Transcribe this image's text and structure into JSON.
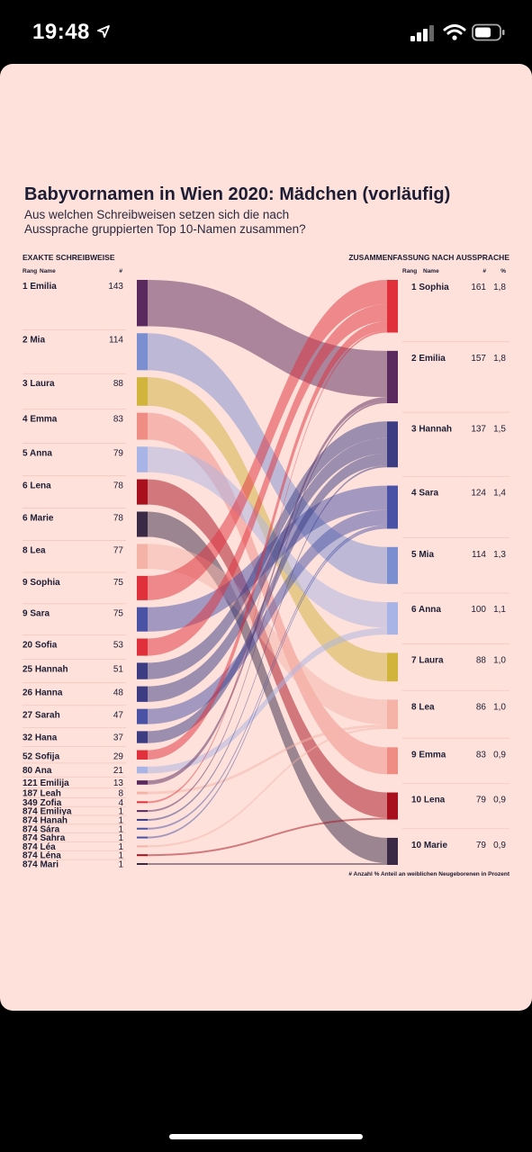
{
  "status_bar": {
    "time": "19:48"
  },
  "chart_data": {
    "type": "sankey",
    "title": "Babyvornamen in Wien 2020: Mädchen (vorläufig)",
    "subtitle_line1": "Aus welchen Schreibweisen setzen sich die nach",
    "subtitle_line2": "Aussprache gruppierten Top 10-Namen zusammen?",
    "left_header": "EXAKTE SCHREIBWEISE",
    "left_col_rank": "Rang",
    "left_col_name": "Name",
    "left_col_count": "#",
    "right_header": "ZUSAMMENFASSUNG NACH AUSSPRACHE",
    "right_col_rank": "Rang",
    "right_col_name": "Name",
    "right_col_count": "#",
    "right_col_pct": "%",
    "footnote": "# Anzahl  % Anteil an weiblichen Neugeborenen in Prozent",
    "right_groups": [
      {
        "rank": "1",
        "name": "Sophia",
        "count": "161",
        "pct": "1,8",
        "color": "#e0303c"
      },
      {
        "rank": "2",
        "name": "Emilia",
        "count": "157",
        "pct": "1,8",
        "color": "#5a2a5e"
      },
      {
        "rank": "3",
        "name": "Hannah",
        "count": "137",
        "pct": "1,5",
        "color": "#3c3c82"
      },
      {
        "rank": "4",
        "name": "Sara",
        "count": "124",
        "pct": "1,4",
        "color": "#4a52a6"
      },
      {
        "rank": "5",
        "name": "Mia",
        "count": "114",
        "pct": "1,3",
        "color": "#7b8fd0"
      },
      {
        "rank": "6",
        "name": "Anna",
        "count": "100",
        "pct": "1,1",
        "color": "#a9b4e6"
      },
      {
        "rank": "7",
        "name": "Laura",
        "count": "88",
        "pct": "1,0",
        "color": "#d1b43c"
      },
      {
        "rank": "8",
        "name": "Lea",
        "count": "86",
        "pct": "1,0",
        "color": "#f5b3a8"
      },
      {
        "rank": "9",
        "name": "Emma",
        "count": "83",
        "pct": "0,9",
        "color": "#ef8c84"
      },
      {
        "rank": "10",
        "name": "Lena",
        "count": "79",
        "pct": "0,9",
        "color": "#a8101e"
      },
      {
        "rank": "10",
        "name": "Marie",
        "count": "79",
        "pct": "0,9",
        "color": "#3a2a45"
      }
    ],
    "spellings": [
      {
        "rank": "1",
        "name": "Emilia",
        "count": "143",
        "group": "Emilia"
      },
      {
        "rank": "2",
        "name": "Mia",
        "count": "114",
        "group": "Mia"
      },
      {
        "rank": "3",
        "name": "Laura",
        "count": "88",
        "group": "Laura"
      },
      {
        "rank": "4",
        "name": "Emma",
        "count": "83",
        "group": "Emma"
      },
      {
        "rank": "5",
        "name": "Anna",
        "count": "79",
        "group": "Anna"
      },
      {
        "rank": "6",
        "name": "Lena",
        "count": "78",
        "group": "Lena"
      },
      {
        "rank": "6",
        "name": "Marie",
        "count": "78",
        "group": "Marie"
      },
      {
        "rank": "8",
        "name": "Lea",
        "count": "77",
        "group": "Lea"
      },
      {
        "rank": "9",
        "name": "Sophia",
        "count": "75",
        "group": "Sophia"
      },
      {
        "rank": "9",
        "name": "Sara",
        "count": "75",
        "group": "Sara"
      },
      {
        "rank": "20",
        "name": "Sofia",
        "count": "53",
        "group": "Sophia"
      },
      {
        "rank": "25",
        "name": "Hannah",
        "count": "51",
        "group": "Hannah"
      },
      {
        "rank": "26",
        "name": "Hanna",
        "count": "48",
        "group": "Hannah"
      },
      {
        "rank": "27",
        "name": "Sarah",
        "count": "47",
        "group": "Sara"
      },
      {
        "rank": "32",
        "name": "Hana",
        "count": "37",
        "group": "Hannah"
      },
      {
        "rank": "52",
        "name": "Sofija",
        "count": "29",
        "group": "Sophia"
      },
      {
        "rank": "80",
        "name": "Ana",
        "count": "21",
        "group": "Anna"
      },
      {
        "rank": "121",
        "name": "Emilija",
        "count": "13",
        "group": "Emilia"
      },
      {
        "rank": "187",
        "name": "Leah",
        "count": "8",
        "group": "Lea"
      },
      {
        "rank": "349",
        "name": "Zofia",
        "count": "4",
        "group": "Sophia"
      },
      {
        "rank": "874",
        "name": "Emiliya",
        "count": "1",
        "group": "Emilia"
      },
      {
        "rank": "874",
        "name": "Hanah",
        "count": "1",
        "group": "Hannah"
      },
      {
        "rank": "874",
        "name": "Sára",
        "count": "1",
        "group": "Sara"
      },
      {
        "rank": "874",
        "name": "Sahra",
        "count": "1",
        "group": "Sara"
      },
      {
        "rank": "874",
        "name": "Léa",
        "count": "1",
        "group": "Lea"
      },
      {
        "rank": "874",
        "name": "Léna",
        "count": "1",
        "group": "Lena"
      },
      {
        "rank": "874",
        "name": "Mari",
        "count": "1",
        "group": "Marie"
      }
    ]
  }
}
